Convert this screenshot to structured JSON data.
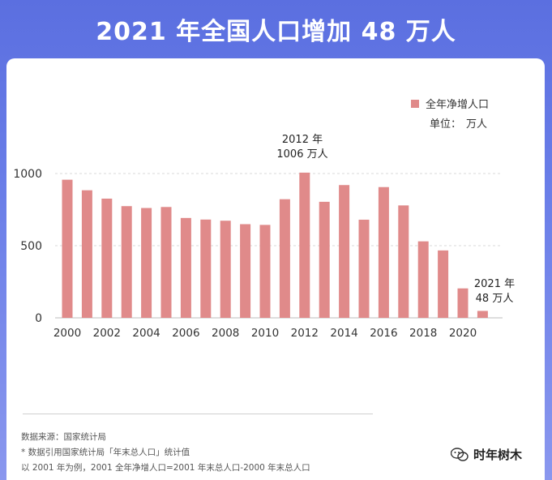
{
  "header": {
    "title": "2021 年全国人口增加 48 万人"
  },
  "legend": {
    "label": "全年净增人口"
  },
  "unit": {
    "label": "单位：",
    "value": "万人"
  },
  "annotations": {
    "peak_year": "2012 年",
    "peak_value": "1006 万人",
    "last_year": "2021 年",
    "last_value": "48 万人"
  },
  "notes": {
    "source": "数据来源：国家统计局",
    "note1": "* 数据引用国家统计局「年末总人口」统计值",
    "note2": "以 2001 年为例，2001 全年净增人口=2001 年末总人口-2000 年末总人口"
  },
  "brand": {
    "name": "时年树木",
    "icon": "wechat-icon"
  },
  "colors": {
    "bar": "#e08a8a",
    "accent": "#5b6fe0",
    "text": "#333333"
  },
  "chart_data": {
    "type": "bar",
    "categories": [
      "2000",
      "2001",
      "2002",
      "2003",
      "2004",
      "2005",
      "2006",
      "2007",
      "2008",
      "2009",
      "2010",
      "2011",
      "2012",
      "2013",
      "2014",
      "2015",
      "2016",
      "2017",
      "2018",
      "2019",
      "2020",
      "2021"
    ],
    "x_tick_labels": [
      "2000",
      "2002",
      "2004",
      "2006",
      "2008",
      "2010",
      "2012",
      "2014",
      "2016",
      "2018",
      "2020"
    ],
    "series": [
      {
        "name": "全年净增人口",
        "values": [
          957,
          884,
          826,
          774,
          761,
          768,
          692,
          681,
          673,
          649,
          644,
          822,
          1006,
          804,
          920,
          680,
          906,
          779,
          530,
          467,
          204,
          48
        ]
      }
    ],
    "ylim": [
      0,
      1000
    ],
    "yticks": [
      0,
      500,
      1000
    ],
    "grid": true,
    "legend_position": "top-right"
  }
}
